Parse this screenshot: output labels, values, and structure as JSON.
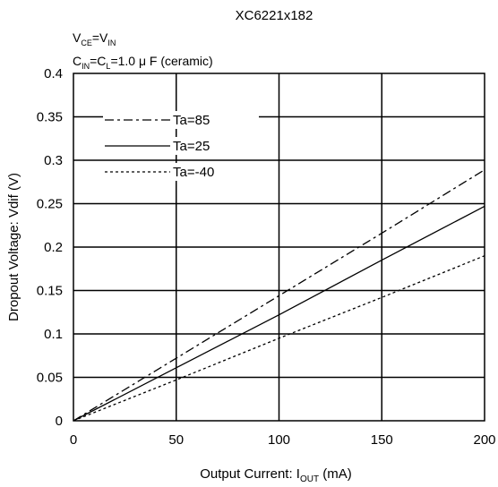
{
  "chart_data": {
    "type": "line",
    "title": "XC6221x182",
    "conditions": [
      {
        "main": "V",
        "sub1": "CE",
        "mid": "=V",
        "sub2": "IN",
        "rest": ""
      },
      {
        "main": "C",
        "sub1": "IN",
        "mid": "=C",
        "sub2": "L",
        "rest": "=1.0 μ F (ceramic)"
      }
    ],
    "xlabel": {
      "main": "Output Current: I",
      "sub": "OUT",
      "rest": " (mA)"
    },
    "ylabel": "Dropout Voltage: Vdif  (V)",
    "xlim": [
      0,
      200
    ],
    "ylim": [
      0,
      0.4
    ],
    "x_ticks": [
      "0",
      "50",
      "100",
      "150",
      "200"
    ],
    "y_ticks": [
      "0",
      "0.05",
      "0.1",
      "0.15",
      "0.2",
      "0.25",
      "0.3",
      "0.35",
      "0.4"
    ],
    "grid": true,
    "legend_position": "upper-left",
    "series": [
      {
        "name": "Ta=85",
        "style": "dash-dot",
        "x": [
          0,
          50,
          100,
          150,
          200
        ],
        "values": [
          0,
          0.072,
          0.144,
          0.216,
          0.289
        ]
      },
      {
        "name": "Ta=25",
        "style": "solid",
        "x": [
          0,
          50,
          100,
          150,
          200
        ],
        "values": [
          0,
          0.061,
          0.122,
          0.185,
          0.247
        ]
      },
      {
        "name": "Ta=-40",
        "style": "dotted",
        "x": [
          0,
          50,
          100,
          150,
          200
        ],
        "values": [
          0,
          0.047,
          0.095,
          0.142,
          0.19
        ]
      }
    ]
  }
}
